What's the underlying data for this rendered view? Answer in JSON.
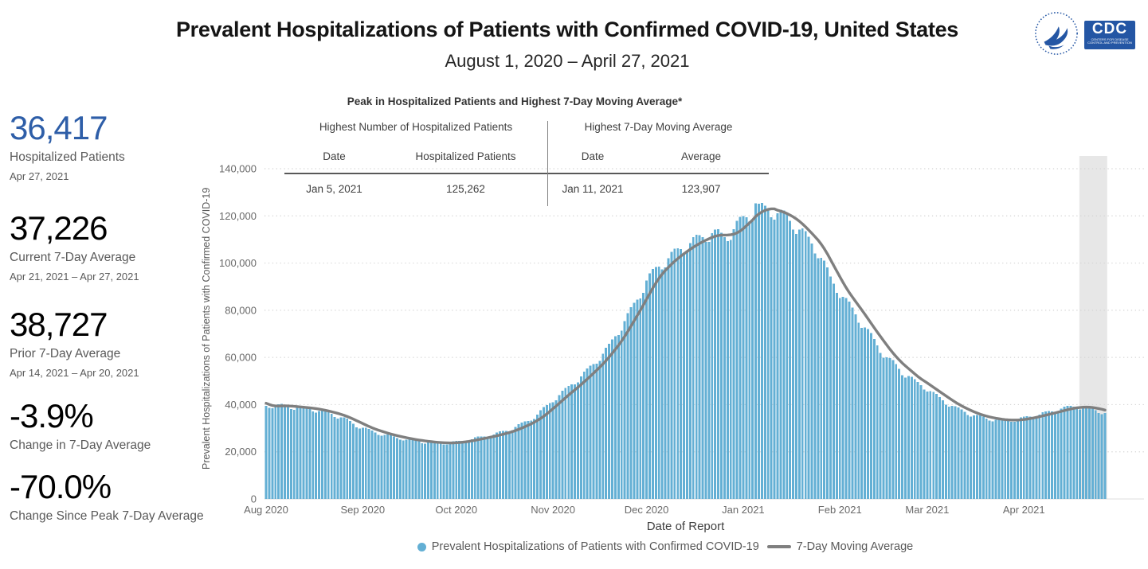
{
  "header": {
    "title": "Prevalent Hospitalizations of Patients with Confirmed COVID-19, United States",
    "subtitle": "August 1, 2020 – April 27, 2021",
    "logos": {
      "cdc": "CDC",
      "cdc_sub": "CENTERS FOR DISEASE CONTROL AND PREVENTION"
    }
  },
  "stats": [
    {
      "value": "36,417",
      "label": "Hospitalized Patients",
      "sublabel": "Apr 27, 2021",
      "color": "#2E5EA8"
    },
    {
      "value": "37,226",
      "label": "Current 7-Day Average",
      "sublabel": "Apr 21, 2021 – Apr 27, 2021",
      "color": "#000000"
    },
    {
      "value": "38,727",
      "label": "Prior 7-Day Average",
      "sublabel": "Apr 14, 2021 – Apr 20, 2021",
      "color": "#000000"
    },
    {
      "value": "-3.9%",
      "label": "Change in 7-Day Average",
      "sublabel": "",
      "color": "#000000"
    },
    {
      "value": "-70.0%",
      "label": "Change Since Peak 7-Day Average",
      "sublabel": "",
      "color": "#000000"
    }
  ],
  "peak_table": {
    "title": "Peak in Hospitalized Patients and Highest 7-Day Moving Average*",
    "left": {
      "header": "Highest Number of Hospitalized Patients",
      "col1_header": "Date",
      "col2_header": "Hospitalized Patients",
      "date": "Jan 5, 2021",
      "value": "125,262"
    },
    "right": {
      "header": "Highest 7-Day Moving Average",
      "col1_header": "Date",
      "col2_header": "Average",
      "date": "Jan 11, 2021",
      "value": "123,907"
    }
  },
  "chart_data": {
    "type": "bar",
    "title": "",
    "xlabel": "Date of Report",
    "ylabel": "Prevalent Hospitalizations of Patients with Confirmed COVID-19",
    "x_start_date": "2020-08-01",
    "x_end_date": "2021-04-27",
    "days_total": 270,
    "ylim": [
      0,
      140000
    ],
    "grid": "dotted-horizontal",
    "y_ticks": [
      {
        "v": 0,
        "label": "0"
      },
      {
        "v": 20000,
        "label": "20,000"
      },
      {
        "v": 40000,
        "label": "40,000"
      },
      {
        "v": 60000,
        "label": "60,000"
      },
      {
        "v": 80000,
        "label": "80,000"
      },
      {
        "v": 100000,
        "label": "100,000"
      },
      {
        "v": 120000,
        "label": "120,000"
      },
      {
        "v": 140000,
        "label": "140,000"
      }
    ],
    "x_ticks": [
      {
        "d": 0,
        "label": "Aug 2020"
      },
      {
        "d": 31,
        "label": "Sep 2020"
      },
      {
        "d": 61,
        "label": "Oct 2020"
      },
      {
        "d": 92,
        "label": "Nov 2020"
      },
      {
        "d": 122,
        "label": "Dec 2020"
      },
      {
        "d": 153,
        "label": "Jan 2021"
      },
      {
        "d": 184,
        "label": "Feb 2021"
      },
      {
        "d": 212,
        "label": "Mar 2021"
      },
      {
        "d": 243,
        "label": "Apr 2021"
      }
    ],
    "series": [
      {
        "name": "Prevalent Hospitalizations of Patients with Confirmed COVID-19",
        "type": "bar",
        "color": "#63AFD4",
        "trend_anchors": [
          [
            0,
            39600
          ],
          [
            3,
            39900
          ],
          [
            7,
            39300
          ],
          [
            11,
            38900
          ],
          [
            14,
            38400
          ],
          [
            18,
            37200
          ],
          [
            21,
            36200
          ],
          [
            25,
            34200
          ],
          [
            29,
            31300
          ],
          [
            32,
            29800
          ],
          [
            35,
            28300
          ],
          [
            39,
            27000
          ],
          [
            42,
            26000
          ],
          [
            46,
            25100
          ],
          [
            49,
            24500
          ],
          [
            53,
            24000
          ],
          [
            56,
            23800
          ],
          [
            59,
            23900
          ],
          [
            63,
            24700
          ],
          [
            66,
            25500
          ],
          [
            70,
            26600
          ],
          [
            73,
            27500
          ],
          [
            77,
            29000
          ],
          [
            80,
            30700
          ],
          [
            84,
            33200
          ],
          [
            87,
            36000
          ],
          [
            90,
            39500
          ],
          [
            92,
            42200
          ],
          [
            96,
            46300
          ],
          [
            99,
            50000
          ],
          [
            103,
            54500
          ],
          [
            106,
            59000
          ],
          [
            110,
            64800
          ],
          [
            113,
            71500
          ],
          [
            117,
            80000
          ],
          [
            120,
            87500
          ],
          [
            122,
            93000
          ],
          [
            126,
            99000
          ],
          [
            129,
            102500
          ],
          [
            133,
            106500
          ],
          [
            136,
            109000
          ],
          [
            140,
            111500
          ],
          [
            143,
            113200
          ],
          [
            145,
            112500
          ],
          [
            147,
            111500
          ],
          [
            149,
            113500
          ],
          [
            151,
            116500
          ],
          [
            153,
            119000
          ],
          [
            155,
            121200
          ],
          [
            157,
            123800
          ],
          [
            159,
            123600
          ],
          [
            161,
            123200
          ],
          [
            163,
            122400
          ],
          [
            165,
            121200
          ],
          [
            167,
            119600
          ],
          [
            169,
            117400
          ],
          [
            171,
            114800
          ],
          [
            173,
            111800
          ],
          [
            175,
            108800
          ],
          [
            177,
            105500
          ],
          [
            179,
            99800
          ],
          [
            181,
            93500
          ],
          [
            184,
            88000
          ],
          [
            186,
            84200
          ],
          [
            188,
            80500
          ],
          [
            190,
            76800
          ],
          [
            192,
            73000
          ],
          [
            194,
            69200
          ],
          [
            196,
            65500
          ],
          [
            198,
            61800
          ],
          [
            200,
            59000
          ],
          [
            202,
            56800
          ],
          [
            204,
            54000
          ],
          [
            206,
            52400
          ],
          [
            208,
            50000
          ],
          [
            210,
            48400
          ],
          [
            212,
            47000
          ],
          [
            214,
            44800
          ],
          [
            216,
            42800
          ],
          [
            218,
            41200
          ],
          [
            221,
            38900
          ],
          [
            223,
            37600
          ],
          [
            226,
            36000
          ],
          [
            228,
            35200
          ],
          [
            231,
            34300
          ],
          [
            233,
            33900
          ],
          [
            236,
            33500
          ],
          [
            238,
            33500
          ],
          [
            241,
            33900
          ],
          [
            243,
            34400
          ],
          [
            245,
            35100
          ],
          [
            247,
            35700
          ],
          [
            250,
            36600
          ],
          [
            252,
            37300
          ],
          [
            254,
            38100
          ],
          [
            256,
            38700
          ],
          [
            259,
            39300
          ],
          [
            261,
            39200
          ],
          [
            263,
            39000
          ],
          [
            265,
            38300
          ],
          [
            267,
            37400
          ],
          [
            269,
            36900
          ]
        ],
        "weekday_pattern_sat_first": [
          0.995,
          0.972,
          0.968,
          0.995,
          1.012,
          1.016,
          1.008
        ],
        "exact_points": {
          "157": 125262,
          "269": 36417
        }
      },
      {
        "name": "7-Day Moving Average",
        "type": "line",
        "color": "#7F7F7F",
        "window": 7,
        "pre_window_values": [
          42800,
          42200,
          41600,
          41000,
          40400,
          39900,
          39600
        ]
      }
    ],
    "highlight_band": {
      "start_day": 260.8,
      "end_day": 269.7,
      "color": "#E7E7E7"
    },
    "peak_bar": {
      "date": "Jan 5, 2021",
      "value": 125262
    },
    "peak_moving_average": {
      "date": "Jan 11, 2021",
      "value": 123907
    },
    "latest_bar": {
      "date": "Apr 27, 2021",
      "value": 36417
    },
    "legend_position": "bottom-center"
  },
  "legend": {
    "items": [
      {
        "label": "Prevalent Hospitalizations of Patients with Confirmed COVID-19",
        "swatch": "dot",
        "color": "#63AFD4"
      },
      {
        "label": "7-Day Moving Average",
        "swatch": "line",
        "color": "#7F7F7F"
      }
    ]
  }
}
